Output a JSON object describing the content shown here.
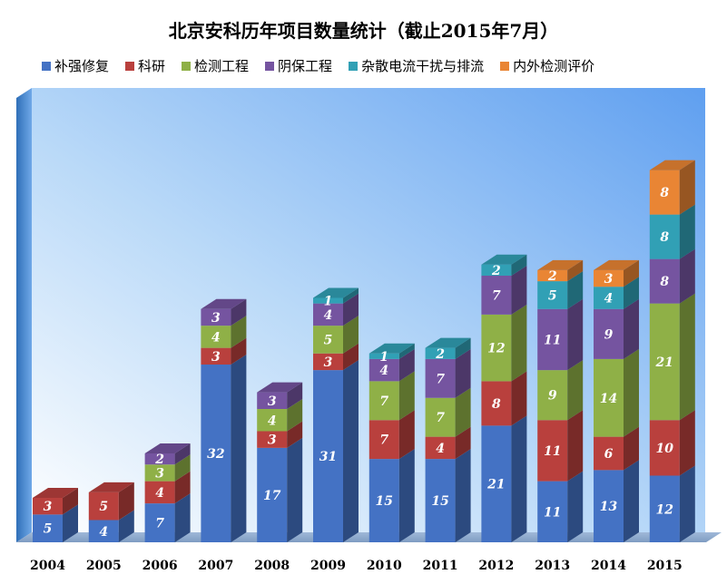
{
  "chart_data": {
    "type": "bar",
    "stacked": true,
    "title": "北京安科历年项目数量统计（截止2015年7月）",
    "categories": [
      "2004",
      "2005",
      "2006",
      "2007",
      "2008",
      "2009",
      "2010",
      "2011",
      "2012",
      "2013",
      "2014",
      "2015"
    ],
    "series": [
      {
        "name": "补强修复",
        "color": "#4472C4",
        "values": [
          5,
          4,
          7,
          32,
          17,
          31,
          15,
          15,
          21,
          11,
          13,
          12
        ]
      },
      {
        "name": "科研",
        "color": "#B9403D",
        "values": [
          3,
          5,
          4,
          3,
          3,
          3,
          7,
          4,
          8,
          11,
          6,
          10
        ]
      },
      {
        "name": "检测工程",
        "color": "#8FB047",
        "values": [
          0,
          0,
          3,
          4,
          4,
          5,
          7,
          7,
          12,
          9,
          14,
          21
        ]
      },
      {
        "name": "阴保工程",
        "color": "#7554A0",
        "values": [
          0,
          0,
          2,
          3,
          3,
          4,
          4,
          7,
          7,
          11,
          9,
          8
        ]
      },
      {
        "name": "杂散电流干扰与排流",
        "color": "#31A0B5",
        "values": [
          0,
          0,
          0,
          0,
          0,
          1,
          1,
          2,
          2,
          5,
          4,
          8
        ]
      },
      {
        "name": "内外检测评价",
        "color": "#E98534",
        "values": [
          0,
          0,
          0,
          0,
          0,
          0,
          0,
          0,
          0,
          2,
          3,
          8
        ]
      }
    ],
    "ylim": [
      0,
      80
    ],
    "legend_position": "top",
    "grid": false
  }
}
